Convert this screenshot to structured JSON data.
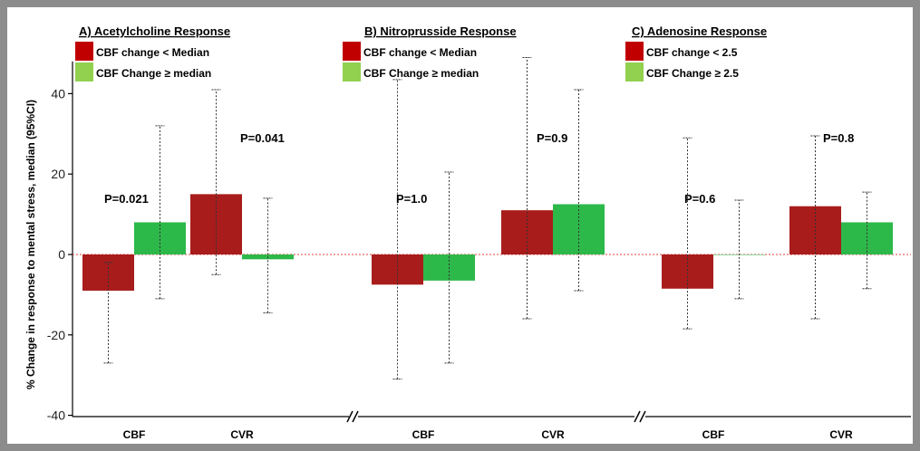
{
  "chart_data": {
    "type": "bar",
    "ylabel": "% Change in response to mental stress, median (95%CI)",
    "ylim": [
      -40,
      48
    ],
    "yticks": [
      -40,
      -20,
      0,
      20,
      40
    ],
    "colors": {
      "low": "#a81c1c",
      "high": "#2db84a",
      "zero_line": "#e64040"
    },
    "panels": [
      {
        "title": "A) Acetylcholine Response",
        "legend": [
          {
            "label": "CBF change < Median",
            "color": "#c00000"
          },
          {
            "label": "CBF Change ≥ median",
            "color": "#92d050"
          }
        ],
        "categories": [
          {
            "name": "CBF",
            "p_value": "P=0.021",
            "low": {
              "value": -9,
              "ci": [
                -27,
                -2
              ]
            },
            "high": {
              "value": 8,
              "ci": [
                -11,
                32
              ]
            }
          },
          {
            "name": "CVR",
            "p_value": "P=0.041",
            "low": {
              "value": 15,
              "ci": [
                -5,
                41
              ]
            },
            "high": {
              "value": -1.2,
              "ci": [
                -14.5,
                14
              ]
            }
          }
        ]
      },
      {
        "title": "B) Nitroprusside Response",
        "legend": [
          {
            "label": "CBF change < Median",
            "color": "#c00000"
          },
          {
            "label": "CBF Change ≥ median",
            "color": "#92d050"
          }
        ],
        "categories": [
          {
            "name": "CBF",
            "p_value": "P=1.0",
            "low": {
              "value": -7.5,
              "ci": [
                -31,
                43.5
              ]
            },
            "high": {
              "value": -6.5,
              "ci": [
                -27,
                20.5
              ]
            }
          },
          {
            "name": "CVR",
            "p_value": "P=0.9",
            "low": {
              "value": 11,
              "ci": [
                -16,
                49
              ]
            },
            "high": {
              "value": 12.5,
              "ci": [
                -9,
                41
              ]
            }
          }
        ]
      },
      {
        "title": "C) Adenosine Response",
        "legend": [
          {
            "label": "CBF change < 2.5",
            "color": "#c00000"
          },
          {
            "label": "CBF Change ≥ 2.5",
            "color": "#92d050"
          }
        ],
        "categories": [
          {
            "name": "CBF",
            "p_value": "P=0.6",
            "low": {
              "value": -8.5,
              "ci": [
                -18.5,
                29
              ]
            },
            "high": {
              "value": 0,
              "ci": [
                -11,
                13.5
              ]
            }
          },
          {
            "name": "CVR",
            "p_value": "P=0.8",
            "low": {
              "value": 12,
              "ci": [
                -16,
                29.5
              ]
            },
            "high": {
              "value": 8,
              "ci": [
                -8.5,
                15.5
              ]
            }
          }
        ]
      }
    ]
  }
}
